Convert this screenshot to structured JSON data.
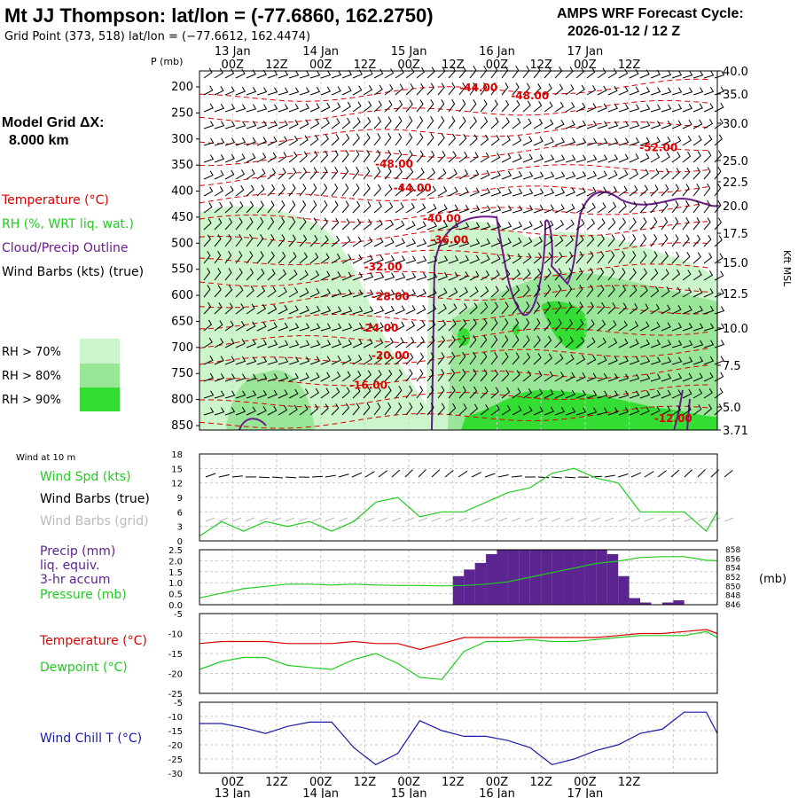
{
  "header": {
    "title": "Mt JJ Thompson:  lat/lon = (-77.6860, 162.2750)",
    "grid_point": "Grid Point (373, 518) lat/lon = (−77.6612, 162.4474)",
    "cycle_title": "AMPS WRF Forecast Cycle:",
    "cycle_value": "2026-01-12 / 12  Z",
    "model_grid_label": "Model Grid ΔX:",
    "model_grid_value": "8.000 km"
  },
  "legend": {
    "temperature": "Temperature (°C)",
    "rh": "RH (%, WRT liq. wat.)",
    "cloud": "Cloud/Precip Outline",
    "wind_barbs": "Wind Barbs (kts) (true)",
    "rh70": "RH > 70%",
    "rh80": "RH > 80%",
    "rh90": "RH > 90%"
  },
  "colors": {
    "temperature": "#dd0000",
    "rh70": "#ccf5cc",
    "rh80": "#99e699",
    "rh90": "#33dd33",
    "cloud": "#6a1b8a",
    "wind_speed": "#22cc22",
    "precip": "#5b2490",
    "dewpoint": "#22cc22",
    "windchill": "#1a1aa6",
    "grid_barbs": "#bbbbbb"
  },
  "time_axis": {
    "top_ticks": [
      "00Z",
      "12Z",
      "00Z",
      "12Z",
      "00Z",
      "12Z",
      "00Z",
      "12Z",
      "00Z",
      "12Z"
    ],
    "top_dates": [
      "13 Jan",
      "14 Jan",
      "15 Jan",
      "16 Jan",
      "17 Jan"
    ],
    "bottom_ticks": [
      "00Z",
      "12Z",
      "00Z",
      "12Z",
      "00Z",
      "12Z",
      "00Z",
      "12Z",
      "00Z",
      "12Z"
    ],
    "bottom_dates": [
      "13 Jan",
      "14 Jan",
      "15 Jan",
      "16 Jan",
      "17 Jan"
    ]
  },
  "chart_data": [
    {
      "type": "heatmap",
      "name": "cross-section",
      "y_label": "P (mb)",
      "right_label": "Kft MSL",
      "pressure_ticks": [
        200,
        250,
        300,
        350,
        400,
        450,
        500,
        550,
        600,
        650,
        700,
        750,
        800,
        850
      ],
      "height_ticks": [
        "40.0",
        "35.0",
        "30.0",
        "25.0",
        "22.5",
        "20.0",
        "17.5",
        "15.0",
        "12.5",
        "10.0",
        "7.5",
        "5.0",
        "3.71"
      ],
      "temperature_labels": [
        {
          "text": "-44.00",
          "hour": 76,
          "p": 218
        },
        {
          "text": "-48.00",
          "hour": 90,
          "p": 233
        },
        {
          "text": "-52.00",
          "hour": 125,
          "p": 330
        },
        {
          "text": "-48.00",
          "hour": 53,
          "p": 360
        },
        {
          "text": "-44.00",
          "hour": 58,
          "p": 405
        },
        {
          "text": "-40.00",
          "hour": 66,
          "p": 462
        },
        {
          "text": "-36.00",
          "hour": 68,
          "p": 502
        },
        {
          "text": "-32.00",
          "hour": 50,
          "p": 552
        },
        {
          "text": "-28.00",
          "hour": 52,
          "p": 608
        },
        {
          "text": "-24.00",
          "hour": 49,
          "p": 666
        },
        {
          "text": "-20.00",
          "hour": 52,
          "p": 718
        },
        {
          "text": "-16.00",
          "hour": 46,
          "p": 773
        },
        {
          "text": "-12.00",
          "hour": 129,
          "p": 835
        }
      ]
    },
    {
      "type": "line",
      "name": "wind-at-10m",
      "label": "Wind at 10 m",
      "series_labels": [
        "Wind Spd (kts)",
        "Wind Barbs (true)",
        "Wind Barbs (grid)"
      ],
      "y_ticks": [
        0,
        3,
        6,
        9,
        12,
        15,
        18
      ],
      "ylim": [
        0,
        18
      ],
      "x_hours": [
        0,
        6,
        12,
        18,
        24,
        30,
        36,
        42,
        48,
        54,
        60,
        66,
        72,
        78,
        84,
        90,
        96,
        102,
        108,
        114,
        120,
        126,
        132,
        138,
        141
      ],
      "wind_speed": [
        1,
        4,
        2,
        4,
        3,
        4,
        2,
        4,
        8,
        9,
        5,
        6,
        6,
        8,
        10,
        11,
        14,
        15,
        13,
        12,
        6,
        6,
        6,
        2,
        6
      ]
    },
    {
      "type": "bar",
      "name": "precip-pressure",
      "series_labels": [
        "Precip (mm)",
        "liq. equiv.",
        "3-hr accum",
        "Pressure (mb)"
      ],
      "right_unit": "(mb)",
      "y_ticks": [
        "0.0",
        "0.5",
        "1.0",
        "1.5",
        "2.0",
        "2.5"
      ],
      "ylim": [
        0,
        2.5
      ],
      "pressure_ticks": [
        846,
        848,
        850,
        852,
        854,
        856,
        858
      ],
      "pressure_lim": [
        846,
        858
      ],
      "precip_bins": [
        {
          "start": 69,
          "end": 72,
          "value": 1.3
        },
        {
          "start": 72,
          "end": 75,
          "value": 1.6
        },
        {
          "start": 75,
          "end": 78,
          "value": 1.9
        },
        {
          "start": 78,
          "end": 81,
          "value": 2.3
        },
        {
          "start": 81,
          "end": 84,
          "value": 2.5
        },
        {
          "start": 84,
          "end": 87,
          "value": 2.5
        },
        {
          "start": 87,
          "end": 90,
          "value": 2.5
        },
        {
          "start": 90,
          "end": 93,
          "value": 2.5
        },
        {
          "start": 93,
          "end": 96,
          "value": 2.5
        },
        {
          "start": 96,
          "end": 99,
          "value": 2.5
        },
        {
          "start": 99,
          "end": 102,
          "value": 2.5
        },
        {
          "start": 102,
          "end": 105,
          "value": 2.5
        },
        {
          "start": 105,
          "end": 108,
          "value": 2.5
        },
        {
          "start": 108,
          "end": 111,
          "value": 2.5
        },
        {
          "start": 111,
          "end": 114,
          "value": 2.3
        },
        {
          "start": 114,
          "end": 117,
          "value": 1.3
        },
        {
          "start": 117,
          "end": 120,
          "value": 0.3
        },
        {
          "start": 120,
          "end": 123,
          "value": 0.1
        },
        {
          "start": 123,
          "end": 126,
          "value": 0.0
        },
        {
          "start": 126,
          "end": 129,
          "value": 0.1
        },
        {
          "start": 129,
          "end": 132,
          "value": 0.2
        }
      ],
      "pressure_x": [
        0,
        6,
        12,
        18,
        24,
        30,
        36,
        42,
        48,
        54,
        60,
        66,
        72,
        78,
        84,
        90,
        96,
        102,
        108,
        114,
        120,
        126,
        132,
        138,
        141
      ],
      "pressure": [
        847.5,
        848.5,
        849.5,
        850,
        850.5,
        850.5,
        850.3,
        850.5,
        850.3,
        850.2,
        850.2,
        850.1,
        850.2,
        850.5,
        851,
        852,
        853,
        854,
        855,
        855.5,
        856.3,
        856.5,
        856.5,
        855.7,
        855.6
      ]
    },
    {
      "type": "line",
      "name": "temperature-dewpoint",
      "series_labels": [
        "Temperature (°C)",
        "Dewpoint (°C)"
      ],
      "y_ticks": [
        "-5",
        "-10",
        "-15",
        "-20",
        "-25"
      ],
      "ylim": [
        -25,
        -5
      ],
      "x_hours": [
        0,
        6,
        12,
        18,
        24,
        30,
        36,
        42,
        48,
        54,
        60,
        66,
        72,
        78,
        84,
        90,
        96,
        102,
        108,
        114,
        120,
        126,
        132,
        138,
        141
      ],
      "temperature": [
        -12.5,
        -12,
        -12,
        -12,
        -12.5,
        -12.5,
        -12.5,
        -12,
        -12.5,
        -12.5,
        -14,
        -12.5,
        -11,
        -11,
        -11,
        -11,
        -11,
        -11,
        -11,
        -10.5,
        -10,
        -10,
        -9.5,
        -9,
        -10
      ],
      "dewpoint": [
        -19,
        -17,
        -16,
        -16,
        -18,
        -18.5,
        -19,
        -16.5,
        -15,
        -17.5,
        -21,
        -21.5,
        -14.5,
        -12,
        -12,
        -11.5,
        -12,
        -12,
        -11.5,
        -11,
        -10.5,
        -10.5,
        -10.5,
        -9.5,
        -11
      ]
    },
    {
      "type": "line",
      "name": "wind-chill",
      "series_labels": [
        "Wind Chill T (°C)"
      ],
      "y_ticks": [
        "-5",
        "-10",
        "-15",
        "-20",
        "-25",
        "-30"
      ],
      "ylim": [
        -30,
        -5
      ],
      "x_hours": [
        0,
        6,
        12,
        18,
        24,
        30,
        36,
        42,
        48,
        54,
        60,
        66,
        72,
        78,
        84,
        90,
        96,
        102,
        108,
        114,
        120,
        126,
        132,
        138,
        141
      ],
      "wind_chill": [
        -12.5,
        -12.5,
        -14,
        -16,
        -13.5,
        -12,
        -12,
        -21,
        -27,
        -23,
        -11.5,
        -15,
        -17,
        -17,
        -18.5,
        -21,
        -27,
        -25,
        -22,
        -20,
        -16,
        -14.5,
        -8.5,
        -8.5,
        -16
      ]
    }
  ]
}
